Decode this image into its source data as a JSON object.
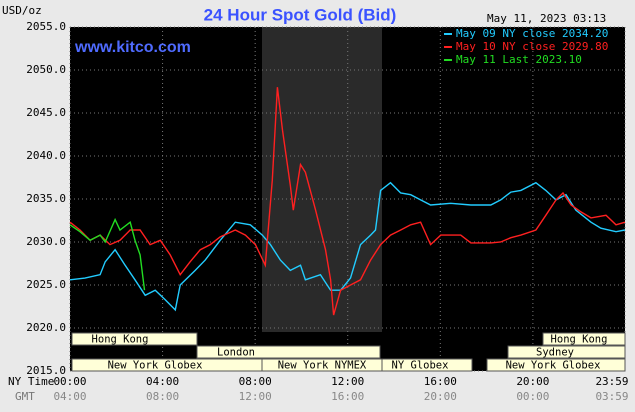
{
  "chart_data": {
    "type": "line",
    "title": "24 Hour Spot Gold (Bid)",
    "website": "www.kitco.com",
    "timestamp": "May 11, 2023 03:13",
    "y_label": "USD/oz",
    "x_label": "NY Time",
    "x2_label": "GMT",
    "xlim": [
      0,
      23.98
    ],
    "ylim": [
      2015,
      2055
    ],
    "yticks": [
      {
        "value": 2015,
        "label": "2015.0"
      },
      {
        "value": 2020,
        "label": "2020.0"
      },
      {
        "value": 2025,
        "label": "2025.0"
      },
      {
        "value": 2030,
        "label": "2030.0"
      },
      {
        "value": 2035,
        "label": "2035.0"
      },
      {
        "value": 2040,
        "label": "2040.0"
      },
      {
        "value": 2045,
        "label": "2045.0"
      },
      {
        "value": 2050,
        "label": "2050.0"
      },
      {
        "value": 2055,
        "label": "2055.0"
      }
    ],
    "xticks": [
      {
        "value": 0,
        "label": "00:00"
      },
      {
        "value": 4,
        "label": "04:00"
      },
      {
        "value": 8,
        "label": "08:00"
      },
      {
        "value": 12,
        "label": "12:00"
      },
      {
        "value": 16,
        "label": "16:00"
      },
      {
        "value": 20,
        "label": "20:00"
      },
      {
        "value": 23.98,
        "label": "23:59"
      }
    ],
    "x2ticks": [
      {
        "value": 0,
        "label": "04:00"
      },
      {
        "value": 4,
        "label": "08:00"
      },
      {
        "value": 8,
        "label": "12:00"
      },
      {
        "value": 12,
        "label": "16:00"
      },
      {
        "value": 16,
        "label": "20:00"
      },
      {
        "value": 20,
        "label": "00:00"
      },
      {
        "value": 23.98,
        "label": "03:59"
      }
    ],
    "grid": true,
    "sessions": [
      "Hong Kong",
      "London",
      "New York Globex",
      "New York NYMEX",
      "NY Globex",
      "Hong Kong",
      "Sydney",
      "New York Globex"
    ],
    "series": [
      {
        "name": "May 09 NY close 2034.20",
        "color": "#22ccff",
        "x": [
          0,
          0.65,
          1.3,
          1.52,
          1.95,
          2.38,
          2.81,
          3.25,
          3.68,
          4.11,
          4.55,
          4.76,
          5.41,
          5.84,
          6.49,
          7.14,
          7.79,
          8.31,
          8.66,
          9.09,
          9.52,
          9.96,
          10.17,
          10.82,
          11.26,
          11.69,
          12.12,
          12.55,
          12.99,
          13.2,
          13.42,
          13.85,
          14.29,
          14.72,
          15.15,
          15.58,
          16.45,
          17.32,
          18.18,
          18.61,
          19.05,
          19.48,
          20.13,
          20.56,
          21.0,
          21.43,
          21.86,
          22.51,
          22.94,
          23.59,
          23.98
        ],
        "values": [
          2025.6,
          2025.8,
          2026.2,
          2027.7,
          2029.1,
          2027.3,
          2025.6,
          2023.8,
          2024.4,
          2023.3,
          2022.1,
          2025.0,
          2026.7,
          2027.9,
          2030.2,
          2032.3,
          2032.0,
          2030.8,
          2029.7,
          2027.9,
          2026.7,
          2027.3,
          2025.6,
          2026.2,
          2024.4,
          2024.4,
          2025.8,
          2029.7,
          2030.8,
          2031.4,
          2036.0,
          2036.9,
          2035.7,
          2035.5,
          2034.9,
          2034.3,
          2034.5,
          2034.3,
          2034.3,
          2034.9,
          2035.8,
          2036.0,
          2036.9,
          2036.0,
          2034.9,
          2035.5,
          2033.7,
          2032.3,
          2031.6,
          2031.2,
          2031.4
        ]
      },
      {
        "name": "May 10 NY close 2029.80",
        "color": "#ff2020",
        "x": [
          0,
          0.43,
          0.87,
          1.3,
          1.73,
          2.16,
          2.6,
          3.03,
          3.46,
          3.9,
          4.33,
          4.76,
          5.19,
          5.63,
          6.06,
          6.49,
          7.14,
          7.58,
          8.01,
          8.44,
          8.74,
          8.96,
          9.18,
          9.52,
          9.65,
          9.96,
          10.17,
          10.61,
          11.04,
          11.26,
          11.39,
          11.69,
          12.12,
          12.55,
          12.99,
          13.42,
          13.85,
          14.29,
          14.72,
          15.15,
          15.58,
          16.02,
          16.88,
          17.32,
          18.18,
          18.61,
          19.05,
          19.48,
          20.13,
          20.56,
          21.0,
          21.3,
          21.65,
          22.08,
          22.51,
          23.16,
          23.59,
          23.98
        ],
        "values": [
          2032.3,
          2031.4,
          2030.2,
          2030.8,
          2029.7,
          2030.2,
          2031.4,
          2031.4,
          2029.7,
          2030.2,
          2028.5,
          2026.2,
          2027.7,
          2029.1,
          2029.7,
          2030.6,
          2031.4,
          2030.8,
          2029.7,
          2027.3,
          2037.2,
          2048.0,
          2043.0,
          2036.6,
          2033.7,
          2039.0,
          2038.1,
          2033.7,
          2029.1,
          2025.6,
          2021.5,
          2024.4,
          2025.0,
          2025.6,
          2027.9,
          2029.7,
          2030.8,
          2031.4,
          2032.0,
          2032.3,
          2029.7,
          2030.8,
          2030.8,
          2029.9,
          2029.9,
          2030.0,
          2030.5,
          2030.8,
          2031.4,
          2033.1,
          2034.9,
          2035.7,
          2034.3,
          2033.5,
          2032.8,
          2033.1,
          2032.0,
          2032.3
        ]
      },
      {
        "name": "May 11 Last 2023.10",
        "color": "#22dd22",
        "x": [
          0,
          0.43,
          0.87,
          1.3,
          1.52,
          1.95,
          2.16,
          2.6,
          2.81,
          3.03,
          3.22
        ],
        "values": [
          2032.0,
          2031.2,
          2030.2,
          2030.8,
          2030.0,
          2032.6,
          2031.4,
          2032.3,
          2030.2,
          2028.5,
          2024.4
        ]
      }
    ]
  }
}
